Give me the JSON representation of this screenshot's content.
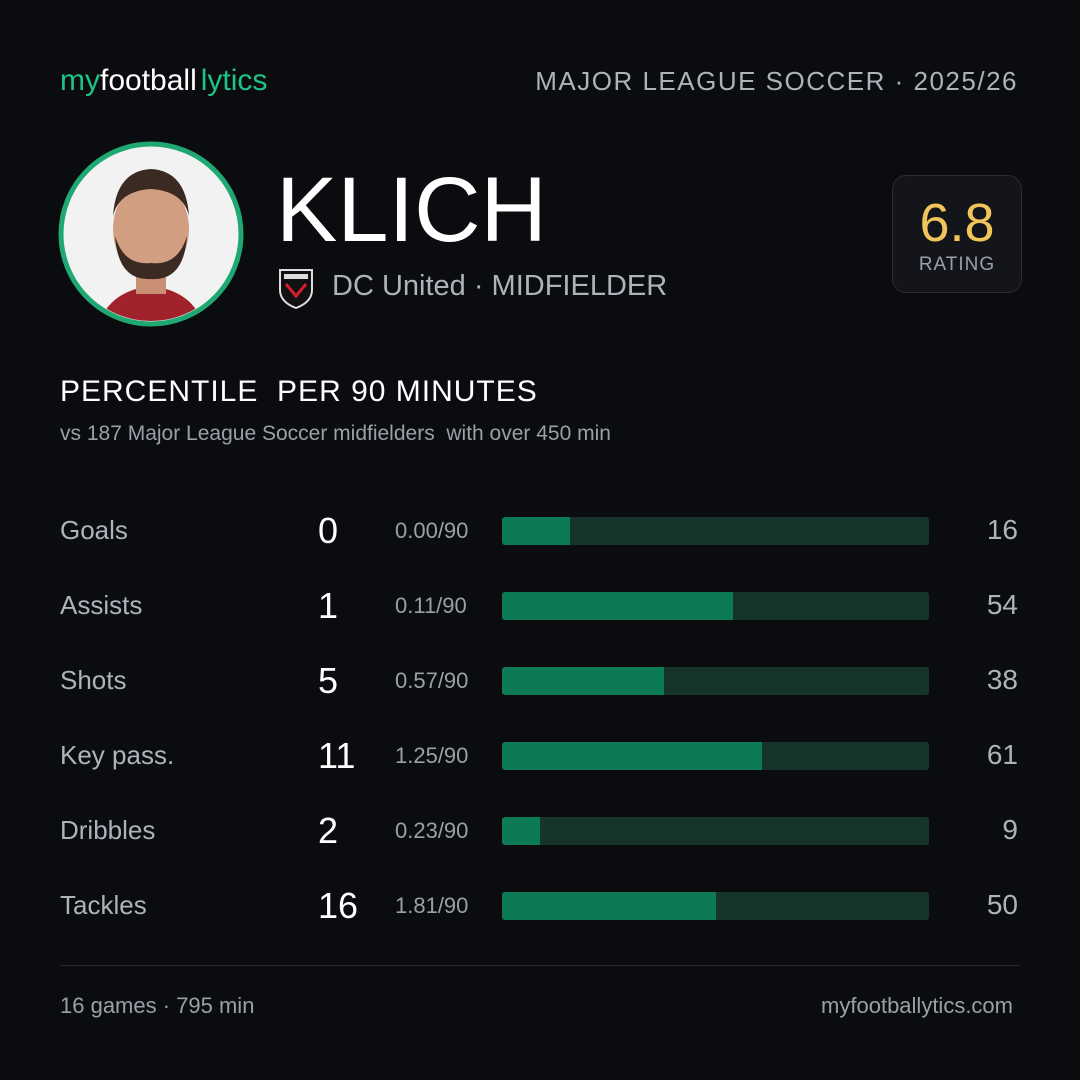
{
  "header": {
    "logo": [
      "my",
      "football",
      "lytics"
    ],
    "league": "MAJOR LEAGUE SOCCER · 2025/26"
  },
  "player": {
    "name": "KLICH",
    "club": "DC United · MIDFIELDER",
    "rating": "6.8",
    "rating_label": "RATING"
  },
  "section": {
    "title": "PERCENTILE  PER 90 MINUTES",
    "subtitle": "vs 187 Major League Soccer midfielders  with over 450 min"
  },
  "xlim": [
    0,
    100
  ],
  "rows": [
    {
      "label": "Goals",
      "total": 0,
      "per90": "0.00/90",
      "percentile": 16
    },
    {
      "label": "Assists",
      "total": 1,
      "per90": "0.11/90",
      "percentile": 54
    },
    {
      "label": "Shots",
      "total": 5,
      "per90": "0.57/90",
      "percentile": 38
    },
    {
      "label": "Key pass.",
      "total": 11,
      "per90": "1.25/90",
      "percentile": 61
    },
    {
      "label": "Dribbles",
      "total": 2,
      "per90": "0.23/90",
      "percentile": 9
    },
    {
      "label": "Tackles",
      "total": 16,
      "per90": "1.81/90",
      "percentile": 50
    }
  ],
  "footer": {
    "left": "16 games · 795 min",
    "right": "myfootballytics.com"
  }
}
